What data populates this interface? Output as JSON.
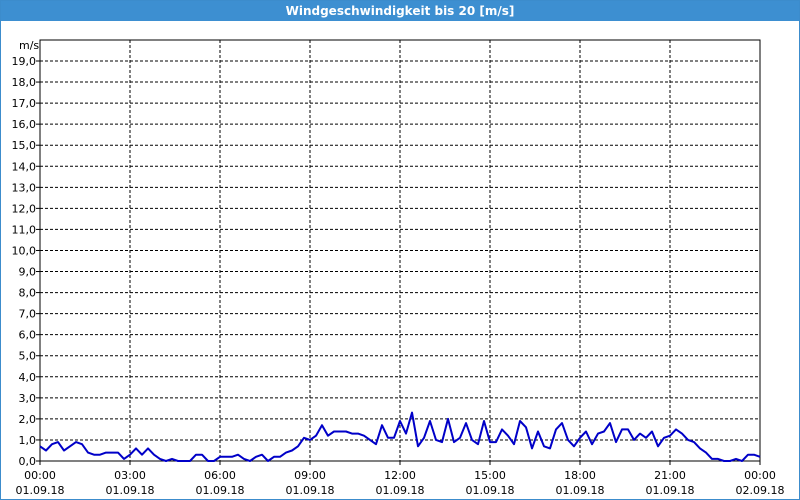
{
  "window": {
    "title": "Windgeschwindigkeit bis 20 [m/s]"
  },
  "chart_data": {
    "type": "line",
    "ylabel": "m/s",
    "ylim": [
      0,
      20
    ],
    "xlim_hours": [
      0,
      24
    ],
    "grid": true,
    "y_ticks": [
      "0,0",
      "1,0",
      "2,0",
      "3,0",
      "4,0",
      "5,0",
      "6,0",
      "7,0",
      "8,0",
      "9,0",
      "10,0",
      "11,0",
      "12,0",
      "13,0",
      "14,0",
      "15,0",
      "16,0",
      "17,0",
      "18,0",
      "19,0"
    ],
    "x_ticks": [
      {
        "time": "00:00",
        "date": "01.09.18"
      },
      {
        "time": "03:00",
        "date": "01.09.18"
      },
      {
        "time": "06:00",
        "date": "01.09.18"
      },
      {
        "time": "09:00",
        "date": "01.09.18"
      },
      {
        "time": "12:00",
        "date": "01.09.18"
      },
      {
        "time": "15:00",
        "date": "01.09.18"
      },
      {
        "time": "18:00",
        "date": "01.09.18"
      },
      {
        "time": "21:00",
        "date": "01.09.18"
      },
      {
        "time": "00:00",
        "date": "02.09.18"
      }
    ],
    "colors": {
      "line": "#0000c8",
      "grid": "#000000",
      "axis": "#000000"
    },
    "series": [
      {
        "x": [
          0,
          0.2,
          0.4,
          0.6,
          0.8,
          1,
          1.2,
          1.4,
          1.6,
          1.8,
          2,
          2.2,
          2.4,
          2.6,
          2.8,
          3,
          3.2,
          3.4,
          3.6,
          3.8,
          4,
          4.2,
          4.4,
          4.6,
          4.8,
          5,
          5.2,
          5.4,
          5.6,
          5.8,
          6,
          6.2,
          6.4,
          6.6,
          6.8,
          7,
          7.2,
          7.4,
          7.6,
          7.8,
          8,
          8.2,
          8.4,
          8.6,
          8.8,
          9,
          9.2,
          9.4,
          9.6,
          9.8,
          10,
          10.2,
          10.4,
          10.6,
          10.8,
          11,
          11.2,
          11.4,
          11.6,
          11.8,
          12,
          12.2,
          12.4,
          12.6,
          12.8,
          13,
          13.2,
          13.4,
          13.6,
          13.8,
          14,
          14.2,
          14.4,
          14.6,
          14.8,
          15,
          15.2,
          15.4,
          15.6,
          15.8,
          16,
          16.2,
          16.4,
          16.6,
          16.8,
          17,
          17.2,
          17.4,
          17.6,
          17.8,
          18,
          18.2,
          18.4,
          18.6,
          18.8,
          19,
          19.2,
          19.4,
          19.6,
          19.8,
          20,
          20.2,
          20.4,
          20.6,
          20.8,
          21,
          21.2,
          21.4,
          21.6,
          21.8,
          22,
          22.2,
          22.4,
          22.6,
          22.8,
          23,
          23.2,
          23.4,
          23.6,
          23.8,
          24
        ],
        "values": [
          0.7,
          0.5,
          0.8,
          0.9,
          0.5,
          0.7,
          0.9,
          0.8,
          0.4,
          0.3,
          0.3,
          0.4,
          0.4,
          0.4,
          0.1,
          0.3,
          0.6,
          0.3,
          0.6,
          0.3,
          0.1,
          0.0,
          0.1,
          0.0,
          0.0,
          0.0,
          0.3,
          0.3,
          0.0,
          0.0,
          0.2,
          0.2,
          0.2,
          0.3,
          0.1,
          0.0,
          0.2,
          0.3,
          0.0,
          0.2,
          0.2,
          0.4,
          0.5,
          0.7,
          1.1,
          1.0,
          1.2,
          1.7,
          1.2,
          1.4,
          1.4,
          1.4,
          1.3,
          1.3,
          1.2,
          1.0,
          0.8,
          1.7,
          1.1,
          1.1,
          1.9,
          1.3,
          2.3,
          0.7,
          1.1,
          1.9,
          1.0,
          0.9,
          2.0,
          0.9,
          1.1,
          1.8,
          1.0,
          0.8,
          1.9,
          0.9,
          0.9,
          1.5,
          1.2,
          0.8,
          1.9,
          1.6,
          0.6,
          1.4,
          0.7,
          0.6,
          1.5,
          1.8,
          1.0,
          0.7,
          1.1,
          1.4,
          0.8,
          1.3,
          1.4,
          1.8,
          0.9,
          1.5,
          1.5,
          1.0,
          1.3,
          1.1,
          1.4,
          0.7,
          1.1,
          1.2,
          1.5,
          1.3,
          1.0,
          0.9,
          0.6,
          0.4,
          0.1,
          0.1,
          0.0,
          0.0,
          0.1,
          0.0,
          0.3,
          0.3,
          0.2
        ]
      }
    ]
  }
}
